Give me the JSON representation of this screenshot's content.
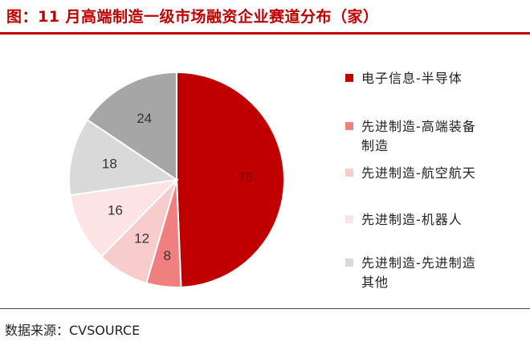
{
  "header": {
    "title": "图：11 月高端制造一级市场融资企业赛道分布（家）"
  },
  "footer": {
    "source": "数据来源：CVSOURCE"
  },
  "chart_data": {
    "type": "pie",
    "title": "图：11 月高端制造一级市场融资企业赛道分布（家）",
    "start_angle_deg": 0,
    "direction": "clockwise",
    "legend_position": "right",
    "slices": [
      {
        "label": "电子信息-半导体",
        "value": 76,
        "color": "#c00000",
        "text_color": "#7a0000"
      },
      {
        "label": "先进制造-高端装备制造",
        "label_lines": [
          "先进制造-高端装备",
          "制造"
        ],
        "value": 8,
        "color": "#f08080",
        "text_color": "#333333"
      },
      {
        "label": "先进制造-航空航天",
        "value": 12,
        "color": "#f8cccc",
        "text_color": "#333333"
      },
      {
        "label": "先进制造-机器人",
        "value": 16,
        "color": "#fde4e4",
        "text_color": "#333333"
      },
      {
        "label": "先进制造-先进制造其他",
        "label_lines": [
          "先进制造-先进制造",
          "其他"
        ],
        "value": 18,
        "color": "#d9d9d9",
        "text_color": "#333333"
      },
      {
        "label": "先进制造-先进制造其他",
        "value": 24,
        "color": "#a6a6a6",
        "text_color": "#333333",
        "in_legend": false
      }
    ]
  }
}
